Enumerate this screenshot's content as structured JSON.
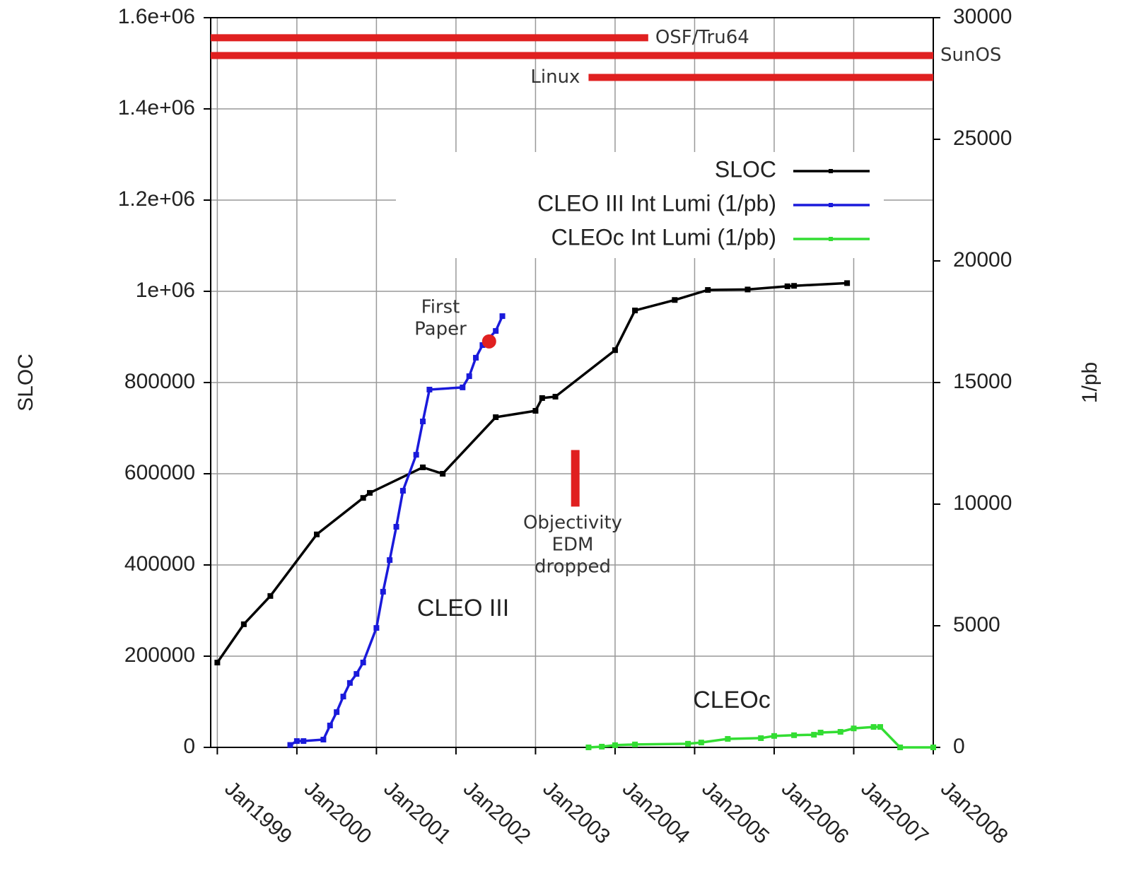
{
  "chart_data": {
    "type": "line",
    "ylabel": "SLOC",
    "y2label": "1/pb",
    "xlim": [
      "1998-12",
      "2008-01"
    ],
    "ylim": [
      0,
      1600000
    ],
    "y2lim": [
      0,
      30000
    ],
    "grid": true,
    "legend": "upper right",
    "xticks": [
      {
        "value": "1999-01",
        "label": "Jan1999"
      },
      {
        "value": "2000-01",
        "label": "Jan2000"
      },
      {
        "value": "2001-01",
        "label": "Jan2001"
      },
      {
        "value": "2002-01",
        "label": "Jan2002"
      },
      {
        "value": "2003-01",
        "label": "Jan2003"
      },
      {
        "value": "2004-01",
        "label": "Jan2004"
      },
      {
        "value": "2005-01",
        "label": "Jan2005"
      },
      {
        "value": "2006-01",
        "label": "Jan2006"
      },
      {
        "value": "2007-01",
        "label": "Jan2007"
      },
      {
        "value": "2008-01",
        "label": "Jan2008"
      }
    ],
    "yticks": [
      0,
      200000,
      400000,
      600000,
      800000,
      {
        "value": 1000000,
        "label": "1e+06"
      },
      {
        "value": 1200000,
        "label": "1.2e+06"
      },
      {
        "value": 1400000,
        "label": "1.4e+06"
      },
      {
        "value": 1600000,
        "label": "1.6e+06"
      }
    ],
    "y2ticks": [
      0,
      5000,
      10000,
      15000,
      20000,
      25000,
      30000
    ],
    "series": [
      {
        "name": "SLOC",
        "color": "#000000",
        "axis": "y",
        "x": [
          "1999-01",
          "1999-05",
          "1999-09",
          "2000-04",
          "2000-11",
          "2000-12",
          "2001-08",
          "2001-11",
          "2002-07",
          "2003-01",
          "2003-02",
          "2003-04",
          "2004-01",
          "2004-04",
          "2004-10",
          "2005-03",
          "2005-09",
          "2006-03",
          "2006-04",
          "2006-12"
        ],
        "values": [
          186000,
          270000,
          332000,
          467000,
          547000,
          558000,
          614000,
          600000,
          724000,
          738000,
          766000,
          769000,
          871000,
          958000,
          981000,
          1003000,
          1004000,
          1011000,
          1012000,
          1018000
        ]
      },
      {
        "name": "CLEO III Int Lumi (1/pb)",
        "color": "#1a1adb",
        "axis": "y2",
        "x": [
          "1999-12",
          "2000-01",
          "2000-02",
          "2000-05",
          "2000-06",
          "2000-07",
          "2000-08",
          "2000-09",
          "2000-10",
          "2000-11",
          "2001-01",
          "2001-02",
          "2001-03",
          "2001-04",
          "2001-05",
          "2001-07",
          "2001-08",
          "2001-09",
          "2002-02",
          "2002-03",
          "2002-04",
          "2002-05",
          "2002-07",
          "2002-08"
        ],
        "values": [
          100,
          260,
          260,
          320,
          900,
          1450,
          2090,
          2650,
          3020,
          3490,
          4910,
          6400,
          7700,
          9070,
          10550,
          12030,
          13400,
          14710,
          14800,
          15260,
          16020,
          16540,
          17120,
          17730
        ]
      },
      {
        "name": "CLEOc Int Lumi (1/pb)",
        "color": "#33dd33",
        "axis": "y2",
        "x": [
          "2003-09",
          "2003-11",
          "2004-01",
          "2004-04",
          "2004-12",
          "2005-02",
          "2005-06",
          "2005-11",
          "2006-01",
          "2006-04",
          "2006-07",
          "2006-08",
          "2006-11",
          "2007-01",
          "2007-04",
          "2007-05",
          "2007-08",
          "2008-01"
        ],
        "values": [
          0,
          30,
          90,
          120,
          150,
          200,
          350,
          380,
          470,
          500,
          520,
          610,
          640,
          780,
          840,
          840,
          0,
          0
        ]
      }
    ],
    "platforms": [
      {
        "name": "OSF/Tru64",
        "start": "1998-12",
        "end": "2004-06",
        "y": 1556000
      },
      {
        "name": "SunOS",
        "start": "1998-12",
        "end": "2008-01",
        "y": 1517000
      },
      {
        "name": "Linux",
        "start": "2003-09",
        "end": "2008-01",
        "y": 1469000
      }
    ],
    "annotations": {
      "first_paper": {
        "text": [
          "First",
          "Paper"
        ],
        "x": "2002-06",
        "y2": 16690
      },
      "objectivity": {
        "text": [
          "Objectivity",
          "EDM",
          "dropped"
        ],
        "x": "2003-07",
        "y": [
          528000,
          652000
        ]
      },
      "regions": [
        "CLEO III",
        "CLEOc"
      ]
    }
  }
}
